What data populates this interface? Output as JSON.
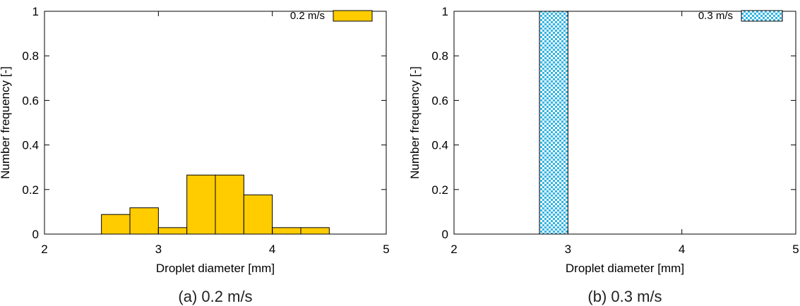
{
  "chart_data": [
    {
      "type": "bar",
      "panel_caption": "(a) 0.2 m/s",
      "xlabel": "Droplet diameter [mm]",
      "ylabel": "Number frequency [-]",
      "xlim": [
        2,
        5
      ],
      "ylim": [
        0,
        1
      ],
      "xticks": [
        "2",
        "3",
        "4",
        "5"
      ],
      "yticks": [
        "0",
        "0.2",
        "0.4",
        "0.6",
        "0.8",
        "1"
      ],
      "bin_edges": [
        2.5,
        2.75,
        3.0,
        3.25,
        3.5,
        3.75,
        4.0,
        4.25,
        4.5
      ],
      "series": [
        {
          "name": "0.2 m/s",
          "values": [
            0.088,
            0.118,
            0.029,
            0.265,
            0.265,
            0.176,
            0.029,
            0.029
          ]
        }
      ],
      "legend_position": "top-right",
      "fill": "solid",
      "colors": {
        "fill": "#FFCC00",
        "stroke": "#000000"
      },
      "grid": false
    },
    {
      "type": "bar",
      "panel_caption": "(b) 0.3 m/s",
      "xlabel": "Droplet diameter [mm]",
      "ylabel": "Number frequency [-]",
      "xlim": [
        2,
        5
      ],
      "ylim": [
        0,
        1
      ],
      "xticks": [
        "2",
        "3",
        "4",
        "5"
      ],
      "yticks": [
        "0",
        "0.2",
        "0.4",
        "0.6",
        "0.8",
        "1"
      ],
      "bin_edges": [
        2.75,
        3.0
      ],
      "series": [
        {
          "name": "0.3 m/s",
          "values": [
            1.0
          ]
        }
      ],
      "legend_position": "top-right",
      "fill": "checkerboard",
      "colors": {
        "fill": "#33B5E5",
        "stroke": "#000000"
      },
      "grid": false
    }
  ]
}
